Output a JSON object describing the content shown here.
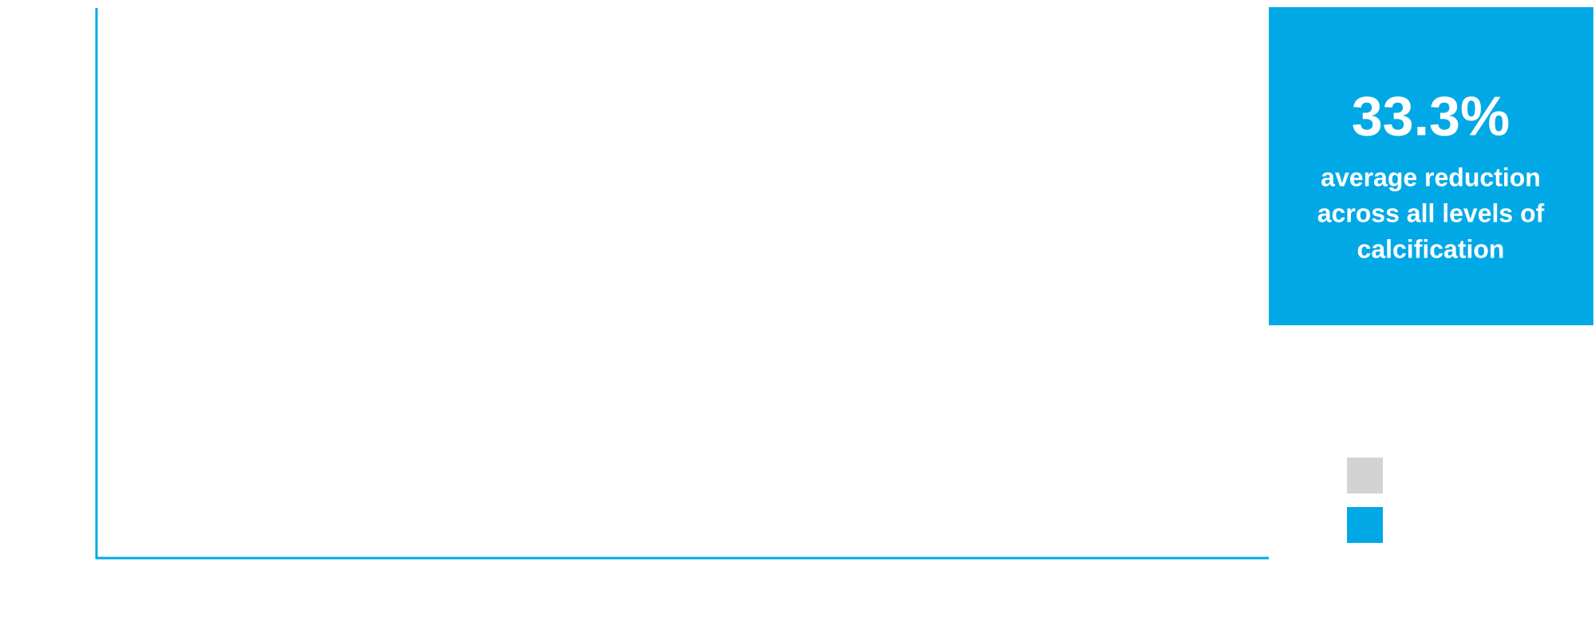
{
  "callout": {
    "value": "33.3%",
    "lines": [
      "average reduction",
      "across all levels of",
      "calcification"
    ],
    "color": "#00a9e6"
  },
  "legend": {
    "colors": [
      "#d3d3d3",
      "#00a9e6"
    ]
  },
  "axis_color": "#00a9e6"
}
